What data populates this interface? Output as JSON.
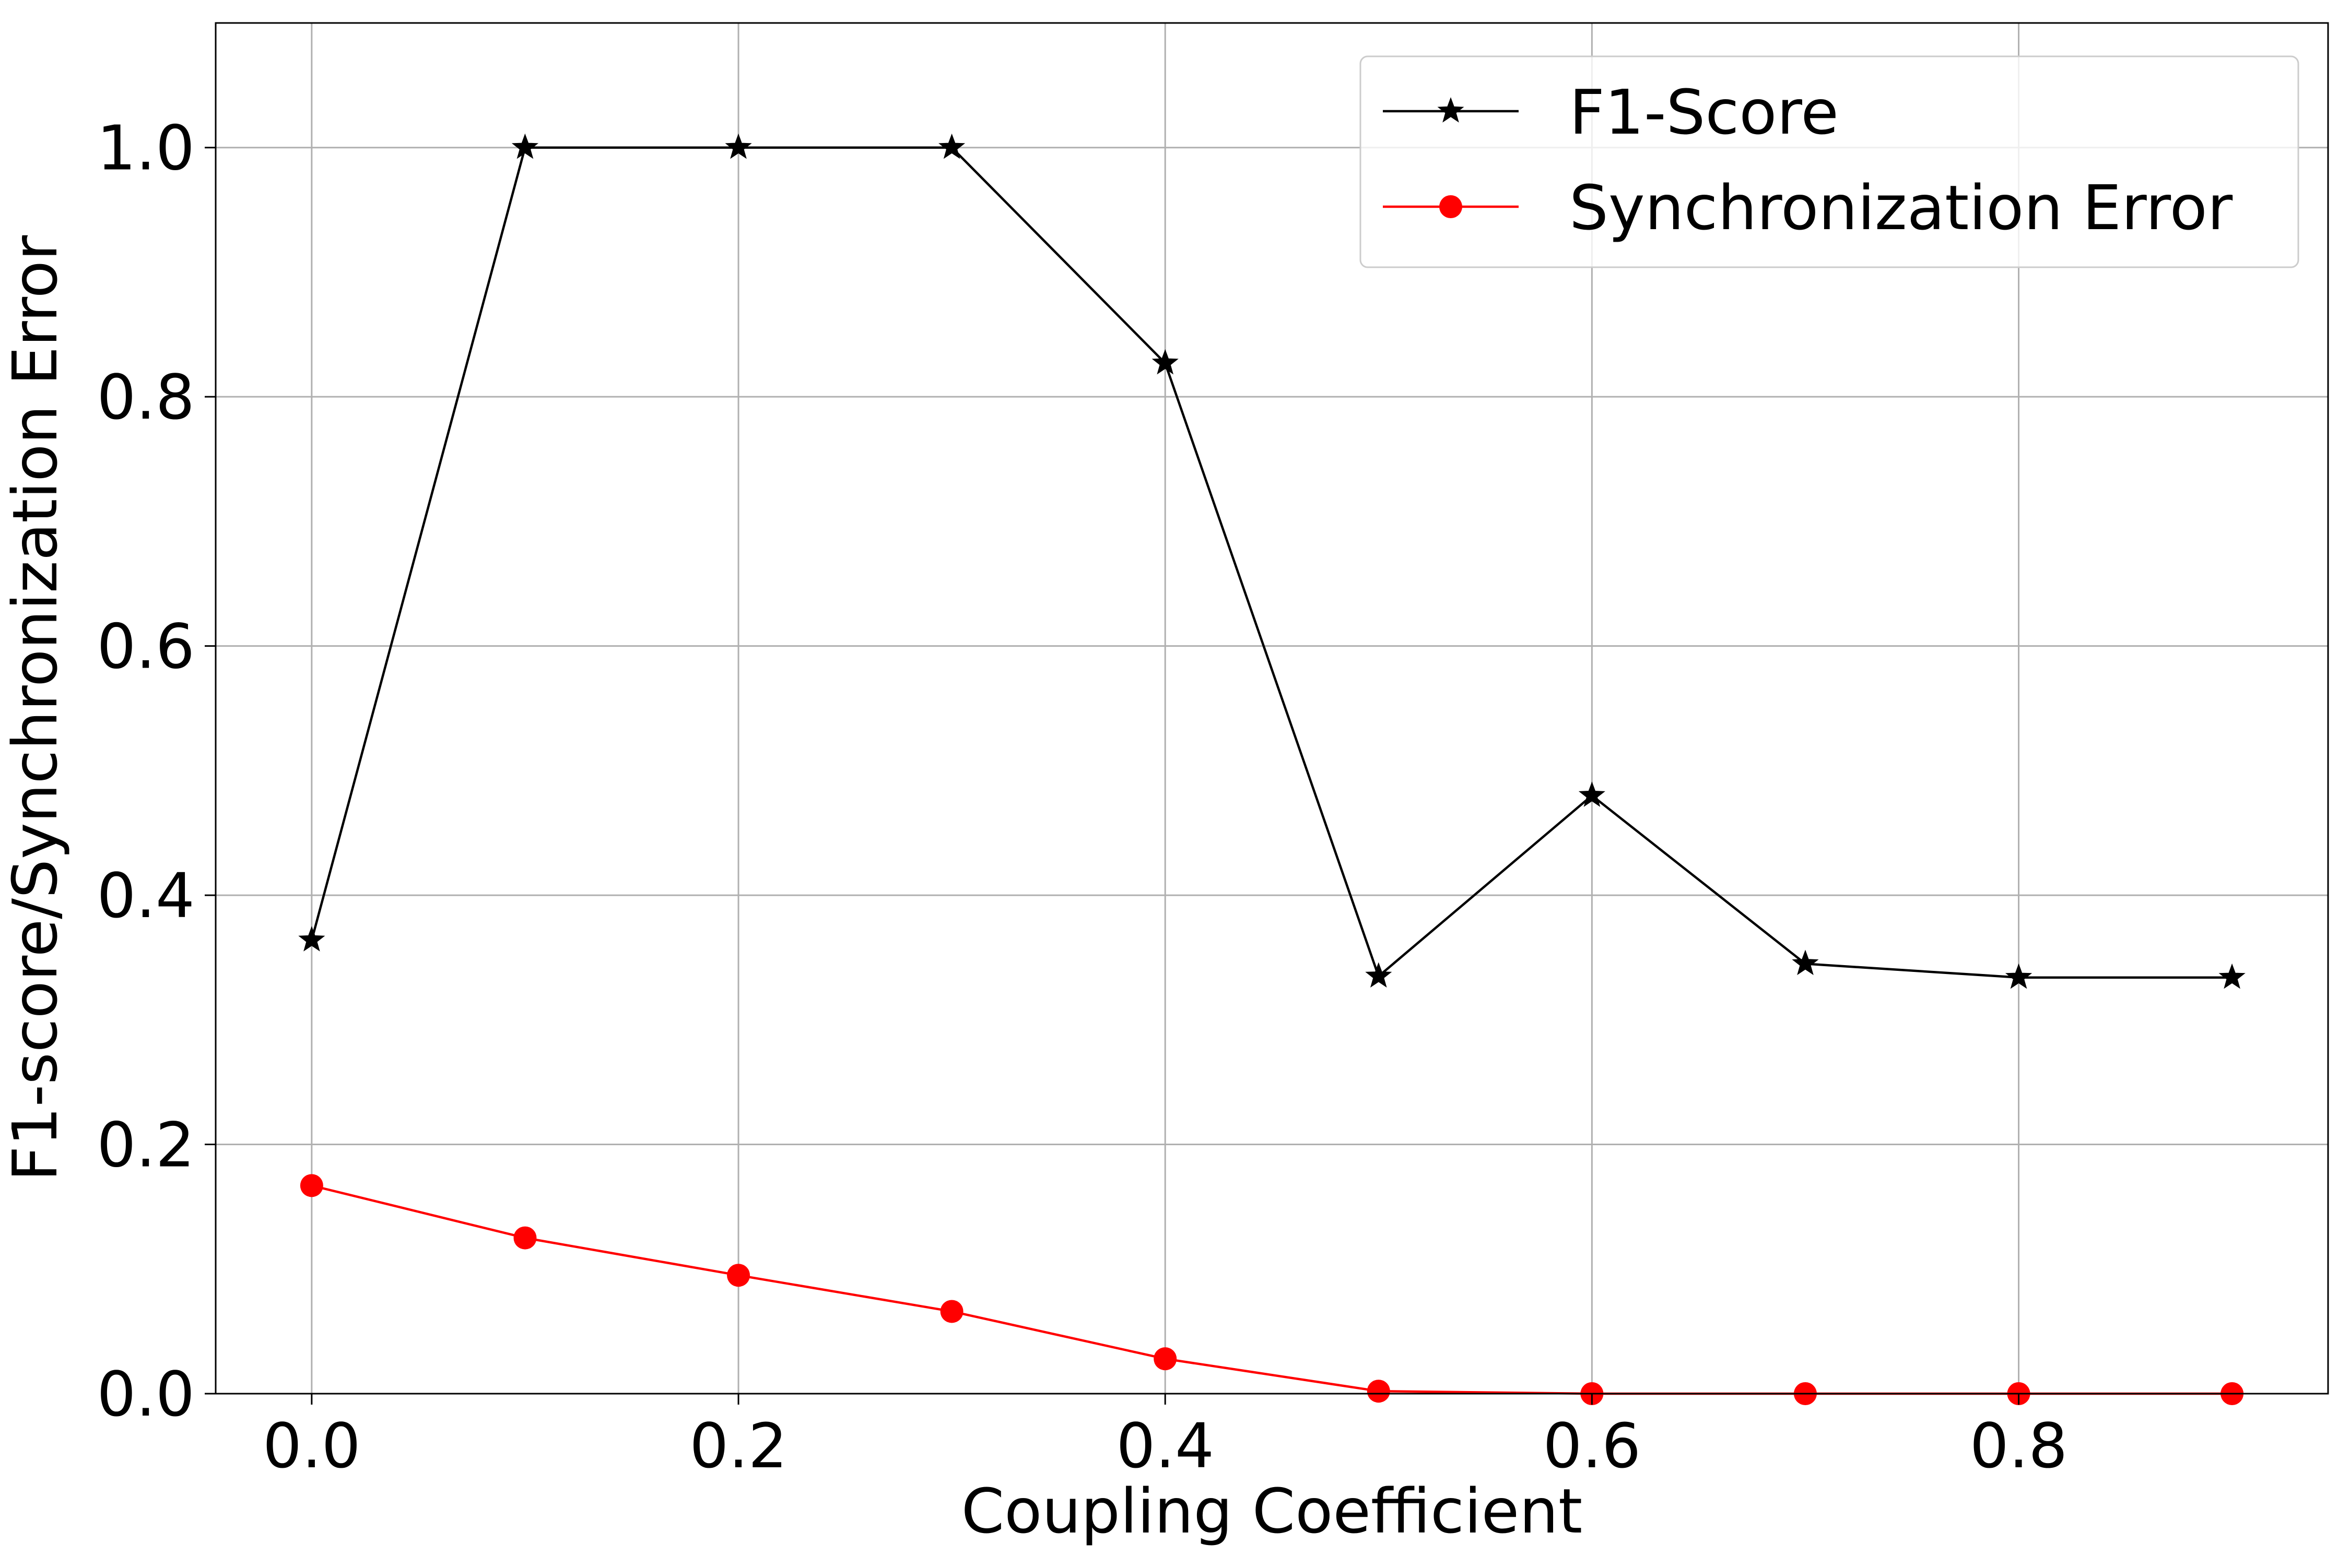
{
  "chart_data": {
    "type": "line",
    "title": "",
    "xlabel": "Coupling Coefficient",
    "ylabel": "F1-score/Synchronization Error",
    "x": [
      0.0,
      0.1,
      0.2,
      0.3,
      0.4,
      0.5,
      0.6,
      0.7,
      0.8,
      0.9
    ],
    "xlim": [
      -0.045,
      0.945
    ],
    "ylim": [
      0.0,
      1.1
    ],
    "xticks": [
      0.0,
      0.2,
      0.4,
      0.6,
      0.8
    ],
    "xtick_labels": [
      "0.0",
      "0.2",
      "0.4",
      "0.6",
      "0.8"
    ],
    "yticks": [
      0.0,
      0.2,
      0.4,
      0.6,
      0.8,
      1.0
    ],
    "ytick_labels": [
      "0.0",
      "0.2",
      "0.4",
      "0.6",
      "0.8",
      "1.0"
    ],
    "grid": true,
    "legend_position": "top-right",
    "series": [
      {
        "name": "F1-Score",
        "color": "#000000",
        "marker": "star",
        "values": [
          0.364,
          1.0,
          1.0,
          1.0,
          0.827,
          0.335,
          0.48,
          0.345,
          0.334,
          0.334
        ]
      },
      {
        "name": "Synchronization Error",
        "color": "#ff0000",
        "marker": "circle",
        "values": [
          0.167,
          0.125,
          0.095,
          0.066,
          0.028,
          0.002,
          0.0,
          0.0,
          0.0,
          0.0
        ]
      }
    ]
  }
}
